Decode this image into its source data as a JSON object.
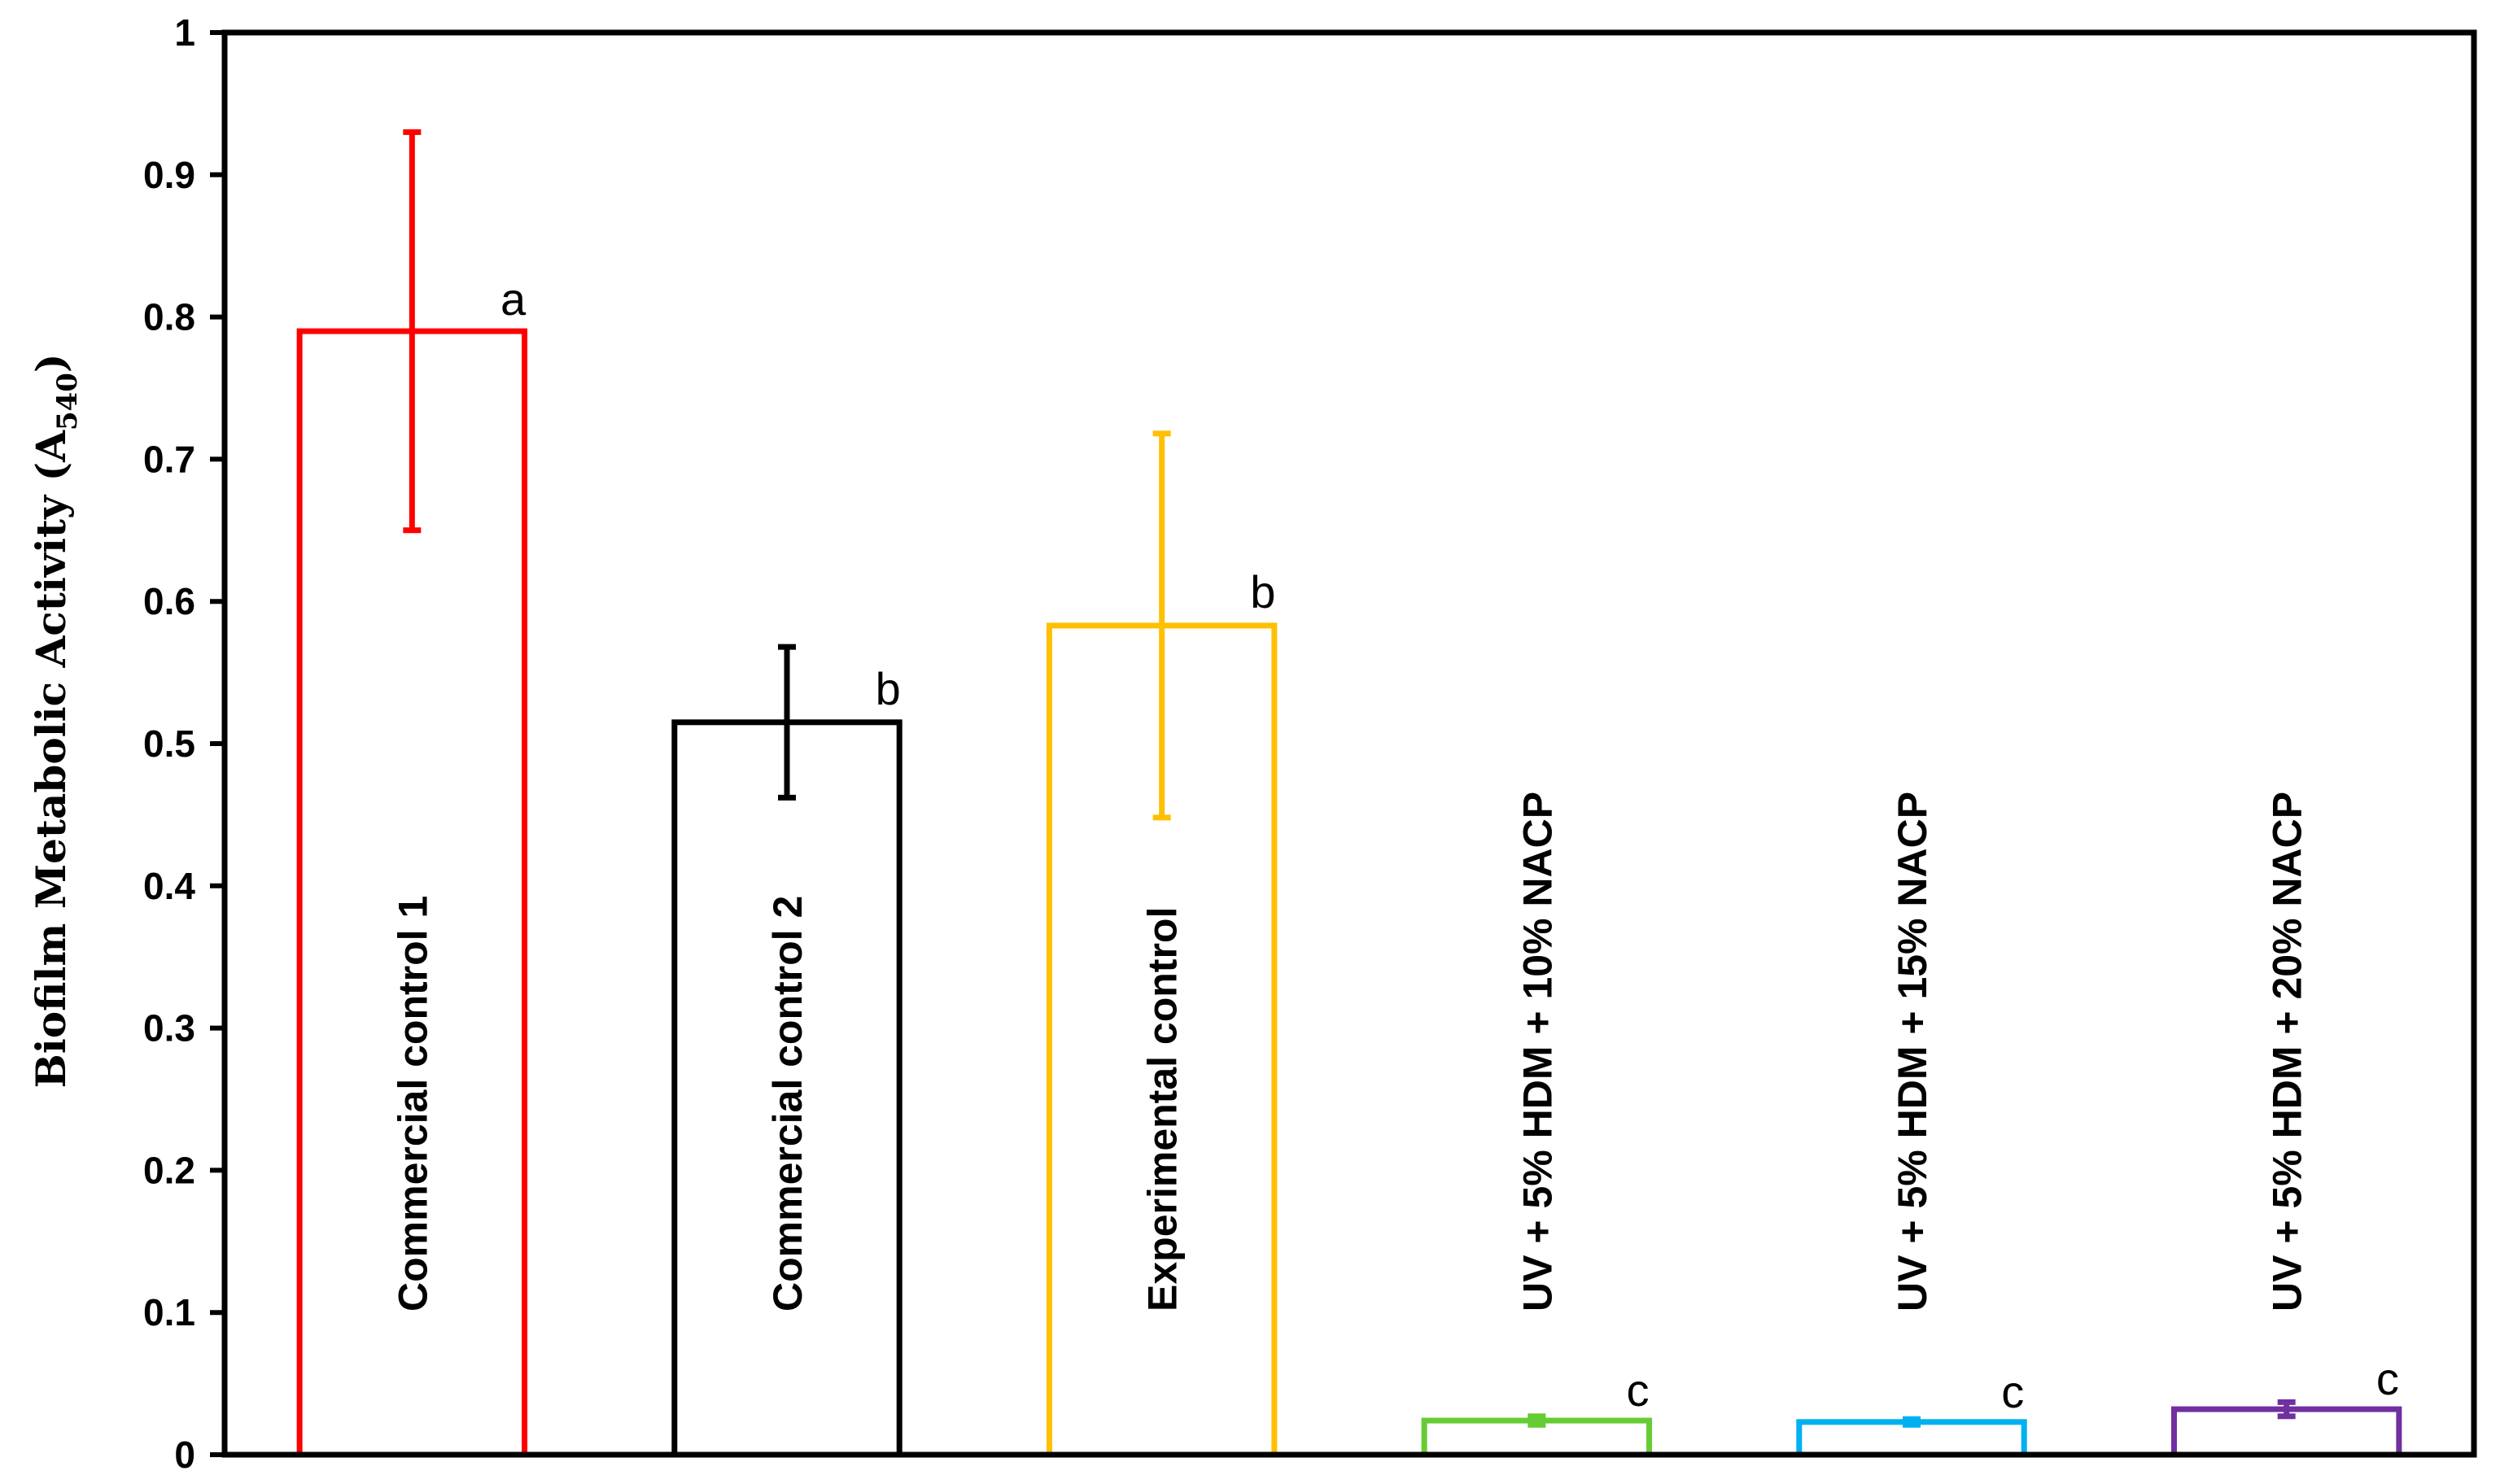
{
  "chart_data": {
    "type": "bar",
    "ylabel": "Biofilm Metabolic Activity (A",
    "ylabel_subscript": "540",
    "ylabel_close": ")",
    "xlabel": "",
    "ylim": [
      0,
      1
    ],
    "yticks": [
      "0",
      "0.1",
      "0.2",
      "0.3",
      "0.4",
      "0.5",
      "0.6",
      "0.7",
      "0.8",
      "0.9",
      "1"
    ],
    "grid": false,
    "categories": [
      "Commercial control 1",
      "Commercial control 2",
      "Experimental control",
      "UV + 5% HDM + 10% NACP",
      "UV + 5% HDM + 15% NACP",
      "UV + 5% HDM + 20% NACP"
    ],
    "values": [
      0.79,
      0.515,
      0.583,
      0.024,
      0.023,
      0.032
    ],
    "error": [
      0.14,
      0.053,
      0.135,
      0.003,
      0.002,
      0.005
    ],
    "significance": [
      "a",
      "b",
      "b",
      "c",
      "c",
      "c"
    ],
    "colors": [
      "#ff0000",
      "#000000",
      "#ffc000",
      "#66cc33",
      "#00b0f0",
      "#7030a0"
    ]
  }
}
